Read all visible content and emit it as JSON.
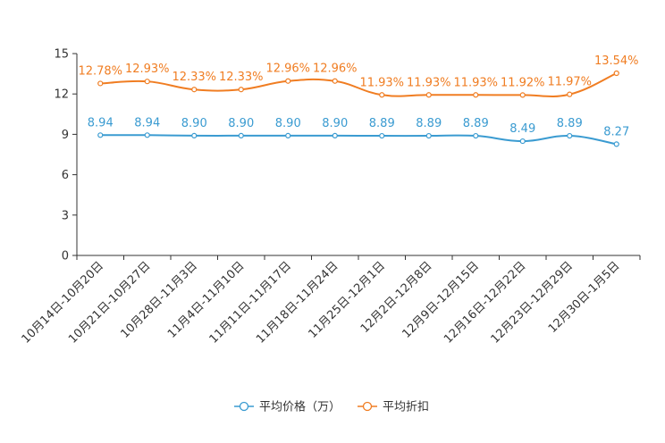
{
  "chart_data": {
    "type": "line",
    "title": "",
    "xlabel": "",
    "ylabel": "",
    "ylim": [
      0,
      15
    ],
    "yticks": [
      0,
      3,
      6,
      9,
      12,
      15
    ],
    "ytick_labels": [
      "0",
      "3",
      "6",
      "9",
      "12",
      "15"
    ],
    "categories": [
      "10月14日-10月20日",
      "10月21日-10月27日",
      "10月28日-11月3日",
      "11月4日-11月10日",
      "11月11日-11月17日",
      "11月18日-11月24日",
      "11月25日-12月1日",
      "12月2日-12月8日",
      "12月9日-12月15日",
      "12月16日-12月22日",
      "12月23日-12月29日",
      "12月30日-1月5日"
    ],
    "series": [
      {
        "name": "平均价格（万）",
        "color": "#3a9bd1",
        "values": [
          8.94,
          8.94,
          8.9,
          8.9,
          8.9,
          8.9,
          8.89,
          8.89,
          8.89,
          8.49,
          8.89,
          8.27
        ],
        "labels": [
          "8.94",
          "8.94",
          "8.90",
          "8.90",
          "8.90",
          "8.90",
          "8.89",
          "8.89",
          "8.89",
          "8.49",
          "8.89",
          "8.27"
        ]
      },
      {
        "name": "平均折扣",
        "color": "#f07d22",
        "values": [
          12.78,
          12.93,
          12.33,
          12.33,
          12.96,
          12.96,
          11.93,
          11.93,
          11.93,
          11.92,
          11.97,
          13.54
        ],
        "labels": [
          "12.78%",
          "12.93%",
          "12.33%",
          "12.33%",
          "12.96%",
          "12.96%",
          "11.93%",
          "11.93%",
          "11.93%",
          "11.92%",
          "11.97%",
          "13.54%"
        ]
      }
    ],
    "legend_position": "bottom-center",
    "grid": false
  }
}
